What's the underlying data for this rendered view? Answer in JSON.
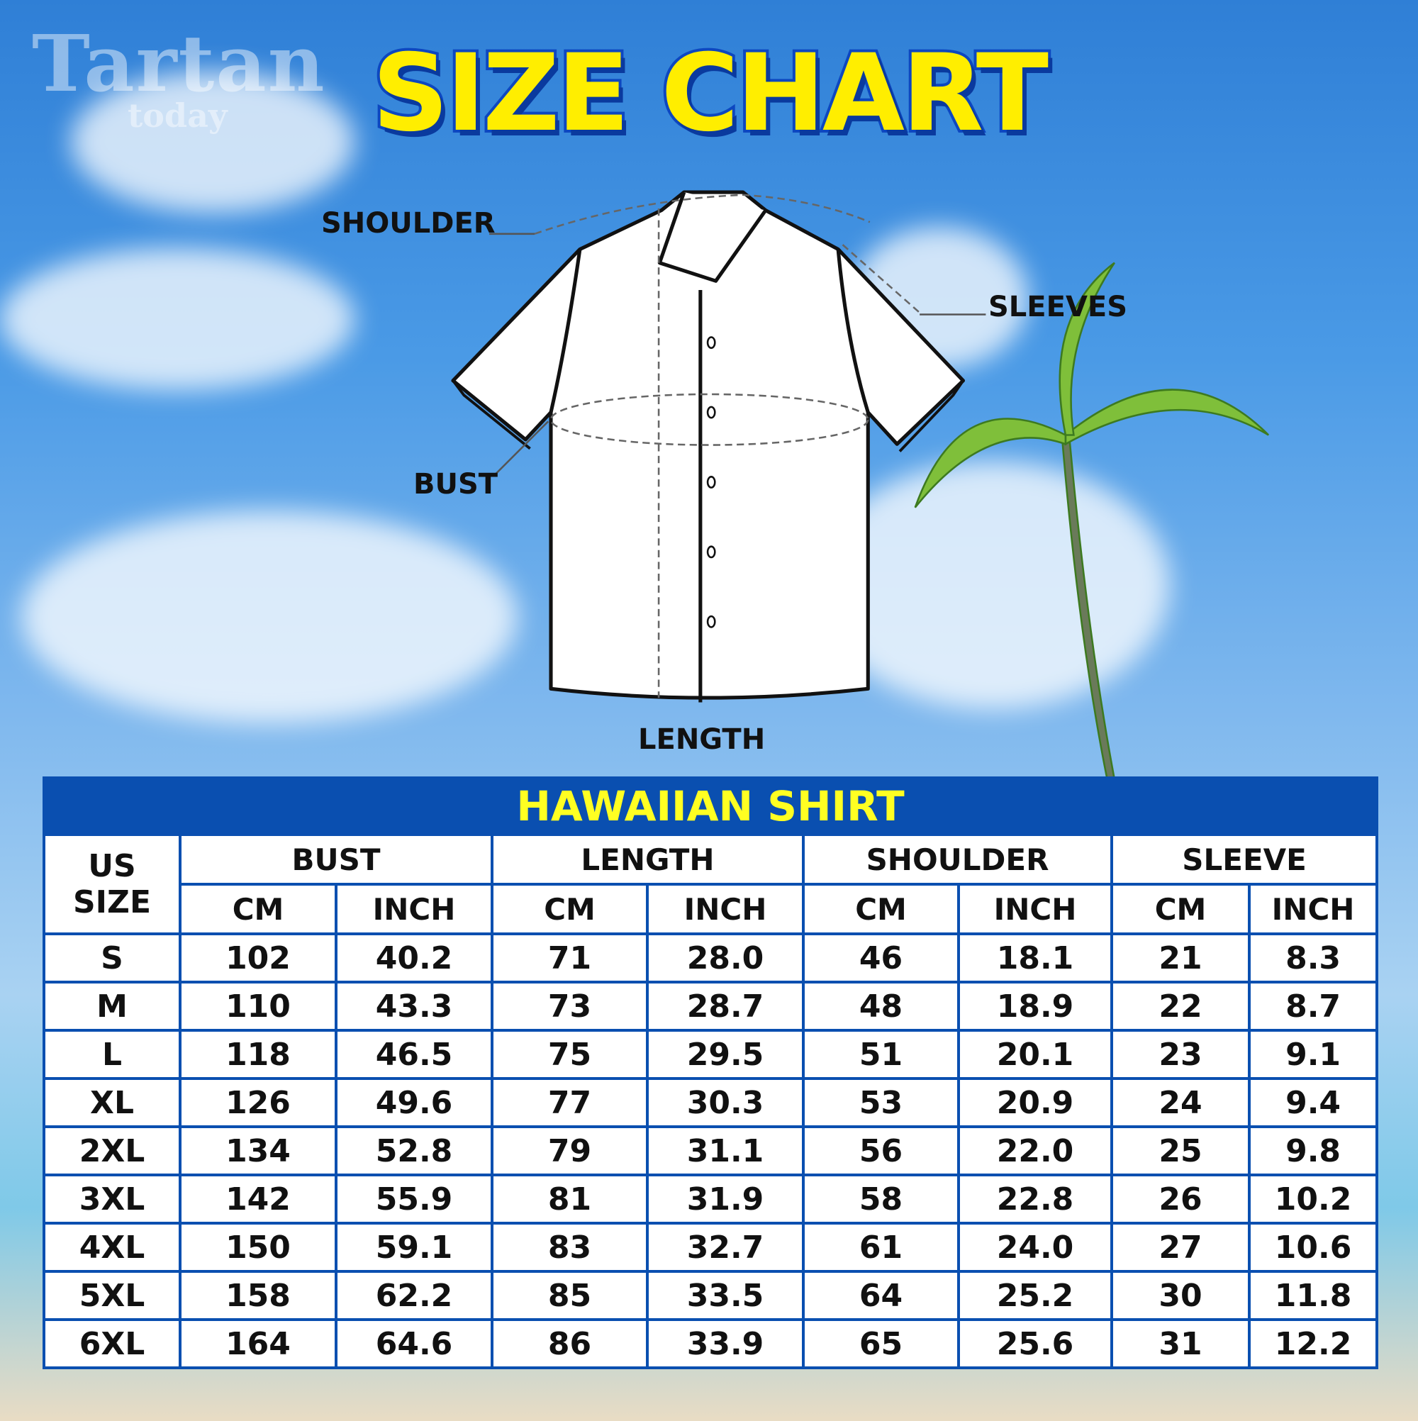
{
  "watermark": {
    "line1": "Tartan",
    "line2": "today"
  },
  "title": "SIZE CHART",
  "diagram": {
    "labels": {
      "shoulder": "SHOULDER",
      "sleeves": "SLEEVES",
      "bust": "BUST",
      "length": "LENGTH"
    }
  },
  "table": {
    "title": "HAWAIIAN SHIRT",
    "size_header": "US SIZE",
    "groups": [
      "BUST",
      "LENGTH",
      "SHOULDER",
      "SLEEVE"
    ],
    "units": [
      "CM",
      "INCH",
      "CM",
      "INCH",
      "CM",
      "INCH",
      "CM",
      "INCH"
    ],
    "rows": [
      [
        "S",
        "102",
        "40.2",
        "71",
        "28.0",
        "46",
        "18.1",
        "21",
        "8.3"
      ],
      [
        "M",
        "110",
        "43.3",
        "73",
        "28.7",
        "48",
        "18.9",
        "22",
        "8.7"
      ],
      [
        "L",
        "118",
        "46.5",
        "75",
        "29.5",
        "51",
        "20.1",
        "23",
        "9.1"
      ],
      [
        "XL",
        "126",
        "49.6",
        "77",
        "30.3",
        "53",
        "20.9",
        "24",
        "9.4"
      ],
      [
        "2XL",
        "134",
        "52.8",
        "79",
        "31.1",
        "56",
        "22.0",
        "25",
        "9.8"
      ],
      [
        "3XL",
        "142",
        "55.9",
        "81",
        "31.9",
        "58",
        "22.8",
        "26",
        "10.2"
      ],
      [
        "4XL",
        "150",
        "59.1",
        "83",
        "32.7",
        "61",
        "24.0",
        "27",
        "10.6"
      ],
      [
        "5XL",
        "158",
        "62.2",
        "85",
        "33.5",
        "64",
        "25.2",
        "30",
        "11.8"
      ],
      [
        "6XL",
        "164",
        "64.6",
        "86",
        "33.9",
        "65",
        "25.6",
        "31",
        "12.2"
      ]
    ]
  },
  "colors": {
    "title": "#ffee00",
    "table_blue": "#0a4fb0",
    "table_title": "#ffff22"
  }
}
